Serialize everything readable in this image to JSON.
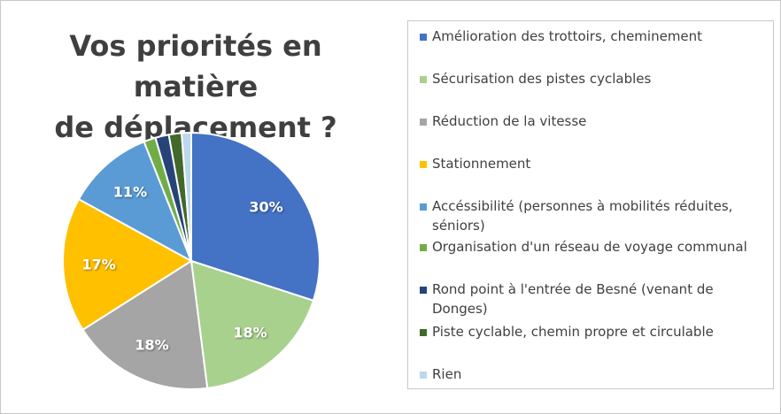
{
  "chart_data": {
    "type": "pie",
    "title": [
      "Vos priorités en matière",
      "de déplacement ?"
    ],
    "series": [
      {
        "name": "Amélioration des trottoirs, cheminement",
        "value": 30,
        "label": "30%",
        "color": "#4472c4"
      },
      {
        "name": "Sécurisation des pistes cyclables",
        "value": 18,
        "label": "18%",
        "color": "#a9d18e"
      },
      {
        "name": "Réduction de la vitesse",
        "value": 18,
        "label": "18%",
        "color": "#a5a5a5"
      },
      {
        "name": "Stationnement",
        "value": 17,
        "label": "17%",
        "color": "#ffc000"
      },
      {
        "name": "Accéssibilité (personnes à mobilités réduites, séniors)",
        "value": 11,
        "label": "11%",
        "color": "#5b9bd5"
      },
      {
        "name": "Organisation d'un réseau de voyage communal",
        "value": 1.5,
        "label": "",
        "color": "#70ad47"
      },
      {
        "name": "Rond point à l'entrée de Besné (venant de Donges)",
        "value": 1.7,
        "label": "",
        "color": "#264478"
      },
      {
        "name": "Piste cyclable, chemin propre et circulable",
        "value": 1.6,
        "label": "",
        "color": "#43682b"
      },
      {
        "name": "Rien",
        "value": 1.2,
        "label": "",
        "color": "#bdd7ee"
      }
    ],
    "start_angle": "12 o'clock, clockwise",
    "legend_position": "right"
  }
}
